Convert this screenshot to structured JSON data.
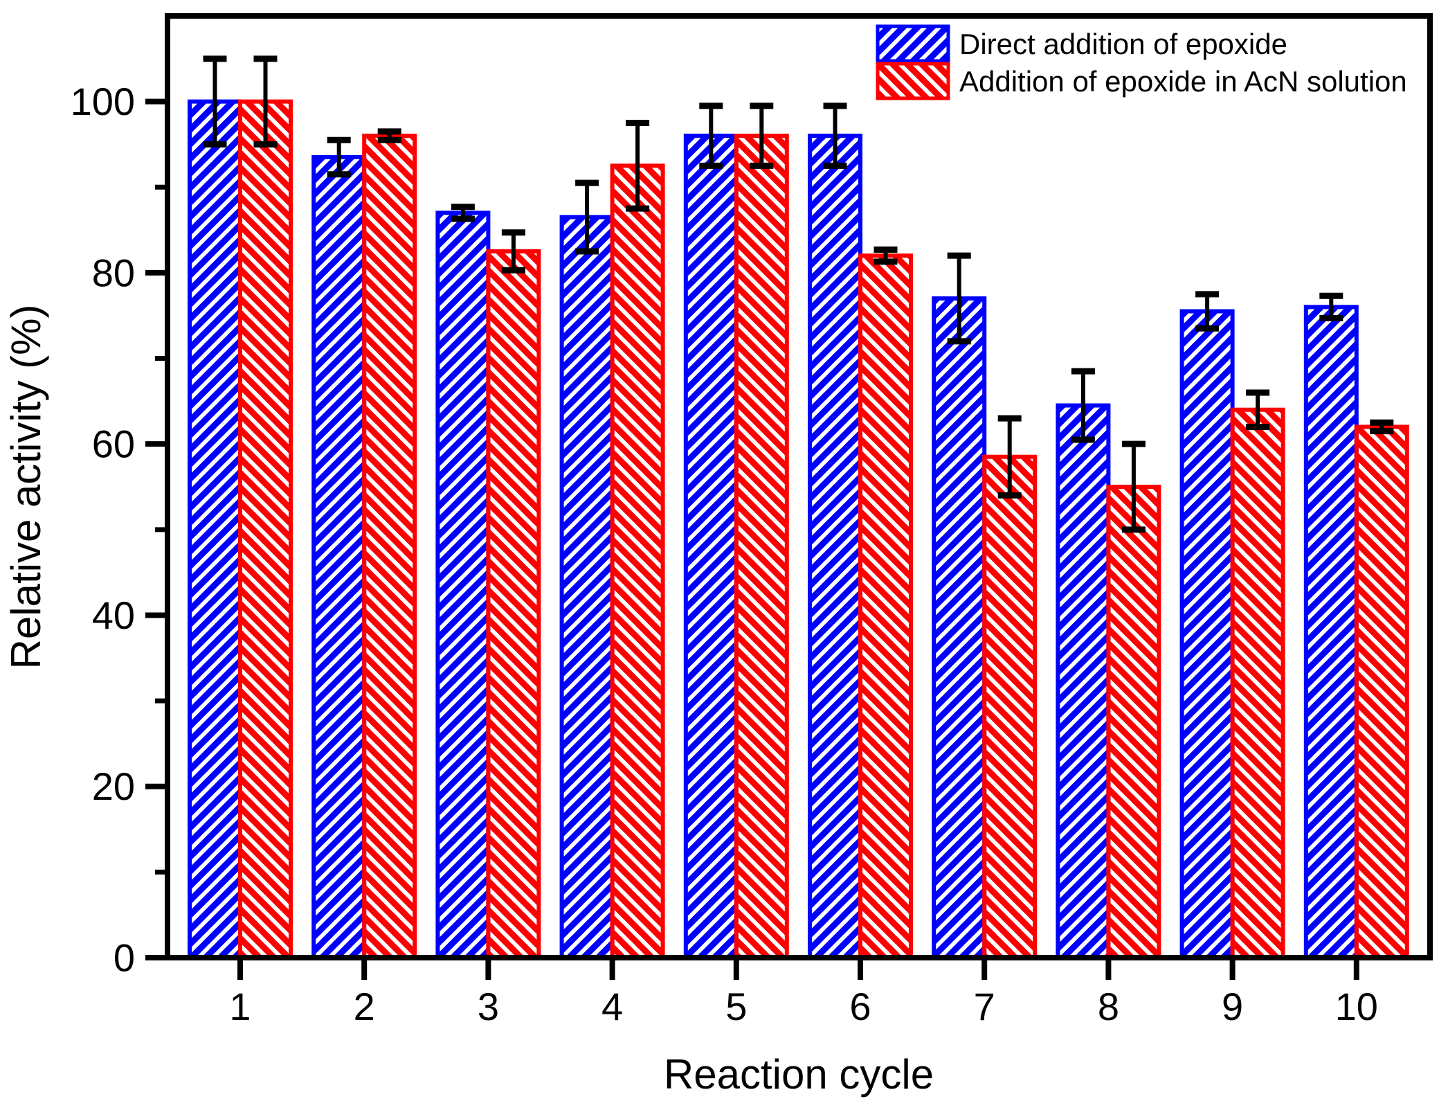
{
  "figure": {
    "background": "#ffffff",
    "frame_color": "#000000",
    "error_bar_color": "#000000"
  },
  "chart_data": {
    "type": "bar",
    "title": "",
    "xlabel": "Reaction cycle",
    "ylabel": "Relative activity (%)",
    "categories": [
      "1",
      "2",
      "3",
      "4",
      "5",
      "6",
      "7",
      "8",
      "9",
      "10"
    ],
    "series": [
      {
        "name": "Direct addition of epoxide",
        "color": "#0000fe",
        "hatch": "/",
        "values": [
          100,
          93.5,
          87,
          86.5,
          96,
          96,
          77,
          64.5,
          75.5,
          76
        ],
        "errors": [
          5,
          2,
          0.7,
          4,
          3.5,
          3.5,
          5,
          4,
          2,
          1.3
        ]
      },
      {
        "name": "Addition of epoxide in AcN solution",
        "color": "#fe0000",
        "hatch": "\\",
        "values": [
          100,
          96,
          82.5,
          92.5,
          96,
          82,
          58.5,
          55,
          64,
          62
        ],
        "errors": [
          5,
          0.5,
          2.2,
          5,
          3.5,
          0.7,
          4.5,
          5,
          2,
          0.5
        ]
      }
    ],
    "ylim": [
      0,
      110
    ],
    "yticks_major": [
      0,
      20,
      40,
      60,
      80,
      100
    ],
    "yticks_minor": [
      10,
      30,
      50,
      70,
      90
    ],
    "grid": false,
    "legend_position": "top-right"
  },
  "legend": {
    "items": [
      {
        "label": "Direct addition of epoxide"
      },
      {
        "label": "Addition of epoxide in AcN solution"
      }
    ]
  }
}
